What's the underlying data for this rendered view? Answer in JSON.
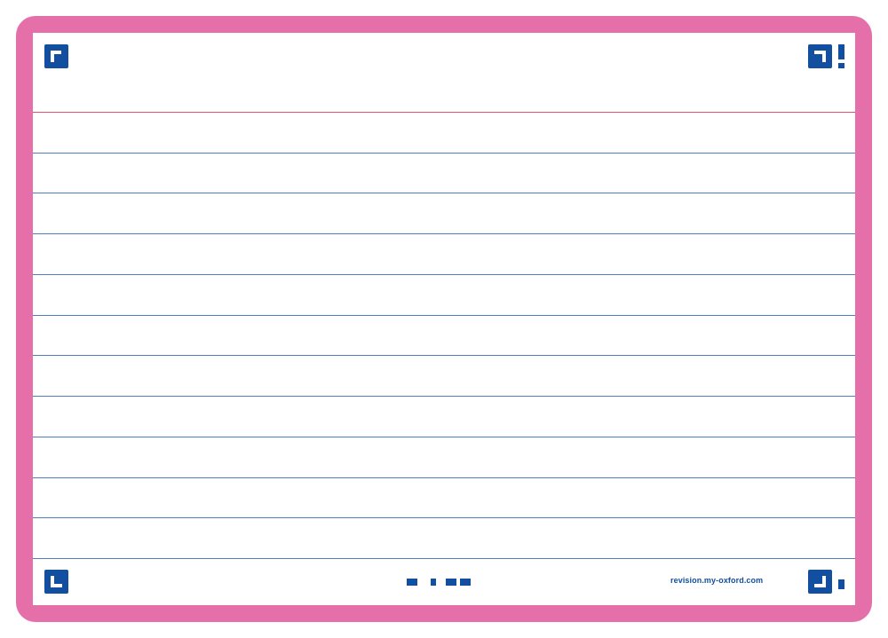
{
  "card": {
    "footer_url": "revision.my-oxford.com"
  },
  "colors": {
    "frame": "#e56fa8",
    "paper": "#ffffff",
    "top_rule": "#e0516a",
    "rules": "#4f7fc3",
    "brand_blue": "#124fa0"
  },
  "icons": {
    "top_left": "corner-top-left-icon",
    "top_right": "corner-top-right-icon",
    "top_right_extra": "exclamation-icon",
    "bottom_left": "corner-bottom-left-icon",
    "bottom_right": "corner-bottom-right-icon",
    "bottom_center": "difficulty-marks-icon"
  }
}
